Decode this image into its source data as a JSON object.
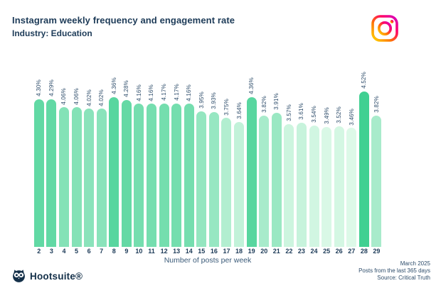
{
  "header": {
    "title": "Instagram weekly frequency and engagement rate",
    "subtitle": "Industry: Education"
  },
  "chart_data": {
    "type": "bar",
    "title": "Instagram weekly frequency and engagement rate",
    "subtitle": "Industry: Education",
    "xlabel": "Number of posts per week",
    "ylabel": "",
    "categories": [
      "2",
      "3",
      "4",
      "5",
      "6",
      "7",
      "8",
      "9",
      "10",
      "11",
      "12",
      "13",
      "14",
      "15",
      "16",
      "17",
      "18",
      "19",
      "20",
      "21",
      "22",
      "23",
      "24",
      "25",
      "26",
      "27",
      "28",
      "29"
    ],
    "values": [
      4.3,
      4.29,
      4.06,
      4.06,
      4.02,
      4.02,
      4.36,
      4.28,
      4.16,
      4.16,
      4.17,
      4.17,
      4.16,
      3.95,
      3.93,
      3.75,
      3.64,
      4.36,
      3.82,
      3.91,
      3.57,
      3.61,
      3.54,
      3.49,
      3.52,
      3.46,
      4.52,
      3.82
    ],
    "labels": [
      "4.30%",
      "4.29%",
      "4.06%",
      "4.06%",
      "4.02%",
      "4.02%",
      "4.36%",
      "4.28%",
      "4.16%",
      "4.16%",
      "4.17%",
      "4.17%",
      "4.16%",
      "3.95%",
      "3.93%",
      "3.75%",
      "3.64%",
      "4.36%",
      "3.82%",
      "3.91%",
      "3.57%",
      "3.61%",
      "3.54%",
      "3.49%",
      "3.52%",
      "3.46%",
      "4.52%",
      "3.82%"
    ],
    "ylim": [
      0,
      4.52
    ],
    "grid": false,
    "legend": "none",
    "bar_style": "rounded-top, color shade mapped to value (darker = higher engagement)"
  },
  "colors": {
    "navy": "#1d3b58",
    "bar_min": "#ddf9e8",
    "bar_max": "#40d092",
    "instagram_gradient": [
      "#ffd600",
      "#ff7a00",
      "#ff0069",
      "#d300c5"
    ]
  },
  "icons": {
    "instagram": "instagram-glyph-outline",
    "hootsuite_owl": "owl-logo"
  },
  "footer": {
    "brand": "Hootsuite®",
    "date": "March 2025",
    "period": "Posts from the last 365 days",
    "source": "Source: Critical Truth"
  }
}
